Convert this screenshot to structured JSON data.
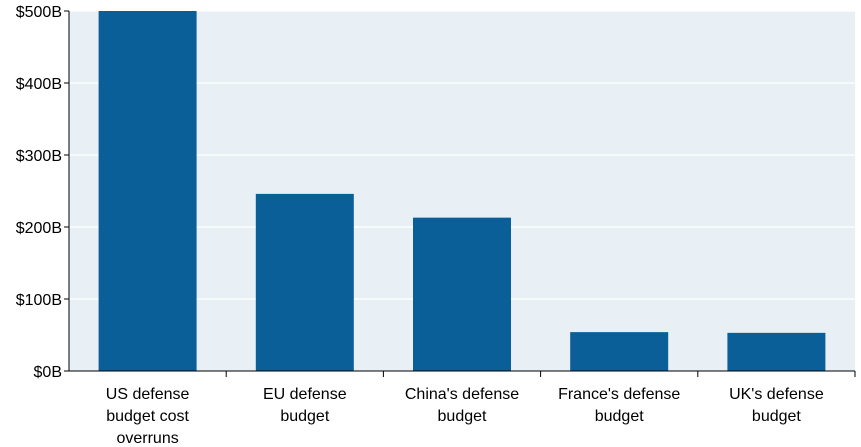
{
  "colors": {
    "plot_background": "#E9F0F5",
    "bar": "#0A5F98",
    "gridline": "#FFFFFF",
    "axis": "#000000"
  },
  "chart_data": {
    "type": "bar",
    "title": "",
    "xlabel": "",
    "ylabel": "",
    "ylim": [
      0,
      500
    ],
    "grid": true,
    "legend": "none",
    "y_ticks": [
      {
        "value": 0,
        "label": "$0B"
      },
      {
        "value": 100,
        "label": "$100B"
      },
      {
        "value": 200,
        "label": "$200B"
      },
      {
        "value": 300,
        "label": "$300B"
      },
      {
        "value": 400,
        "label": "$400B"
      },
      {
        "value": 500,
        "label": "$500B"
      }
    ],
    "categories": [
      "US defense budget cost overruns",
      "EU defense budget",
      "China's defense budget",
      "France's defense budget",
      "UK's defense budget"
    ],
    "category_label_lines": [
      [
        "US defense",
        "budget cost",
        "overruns"
      ],
      [
        "EU defense",
        "budget"
      ],
      [
        "China's defense",
        "budget"
      ],
      [
        "France's defense",
        "budget"
      ],
      [
        "UK's defense",
        "budget"
      ]
    ],
    "values": [
      500,
      246,
      213,
      54,
      53
    ]
  }
}
